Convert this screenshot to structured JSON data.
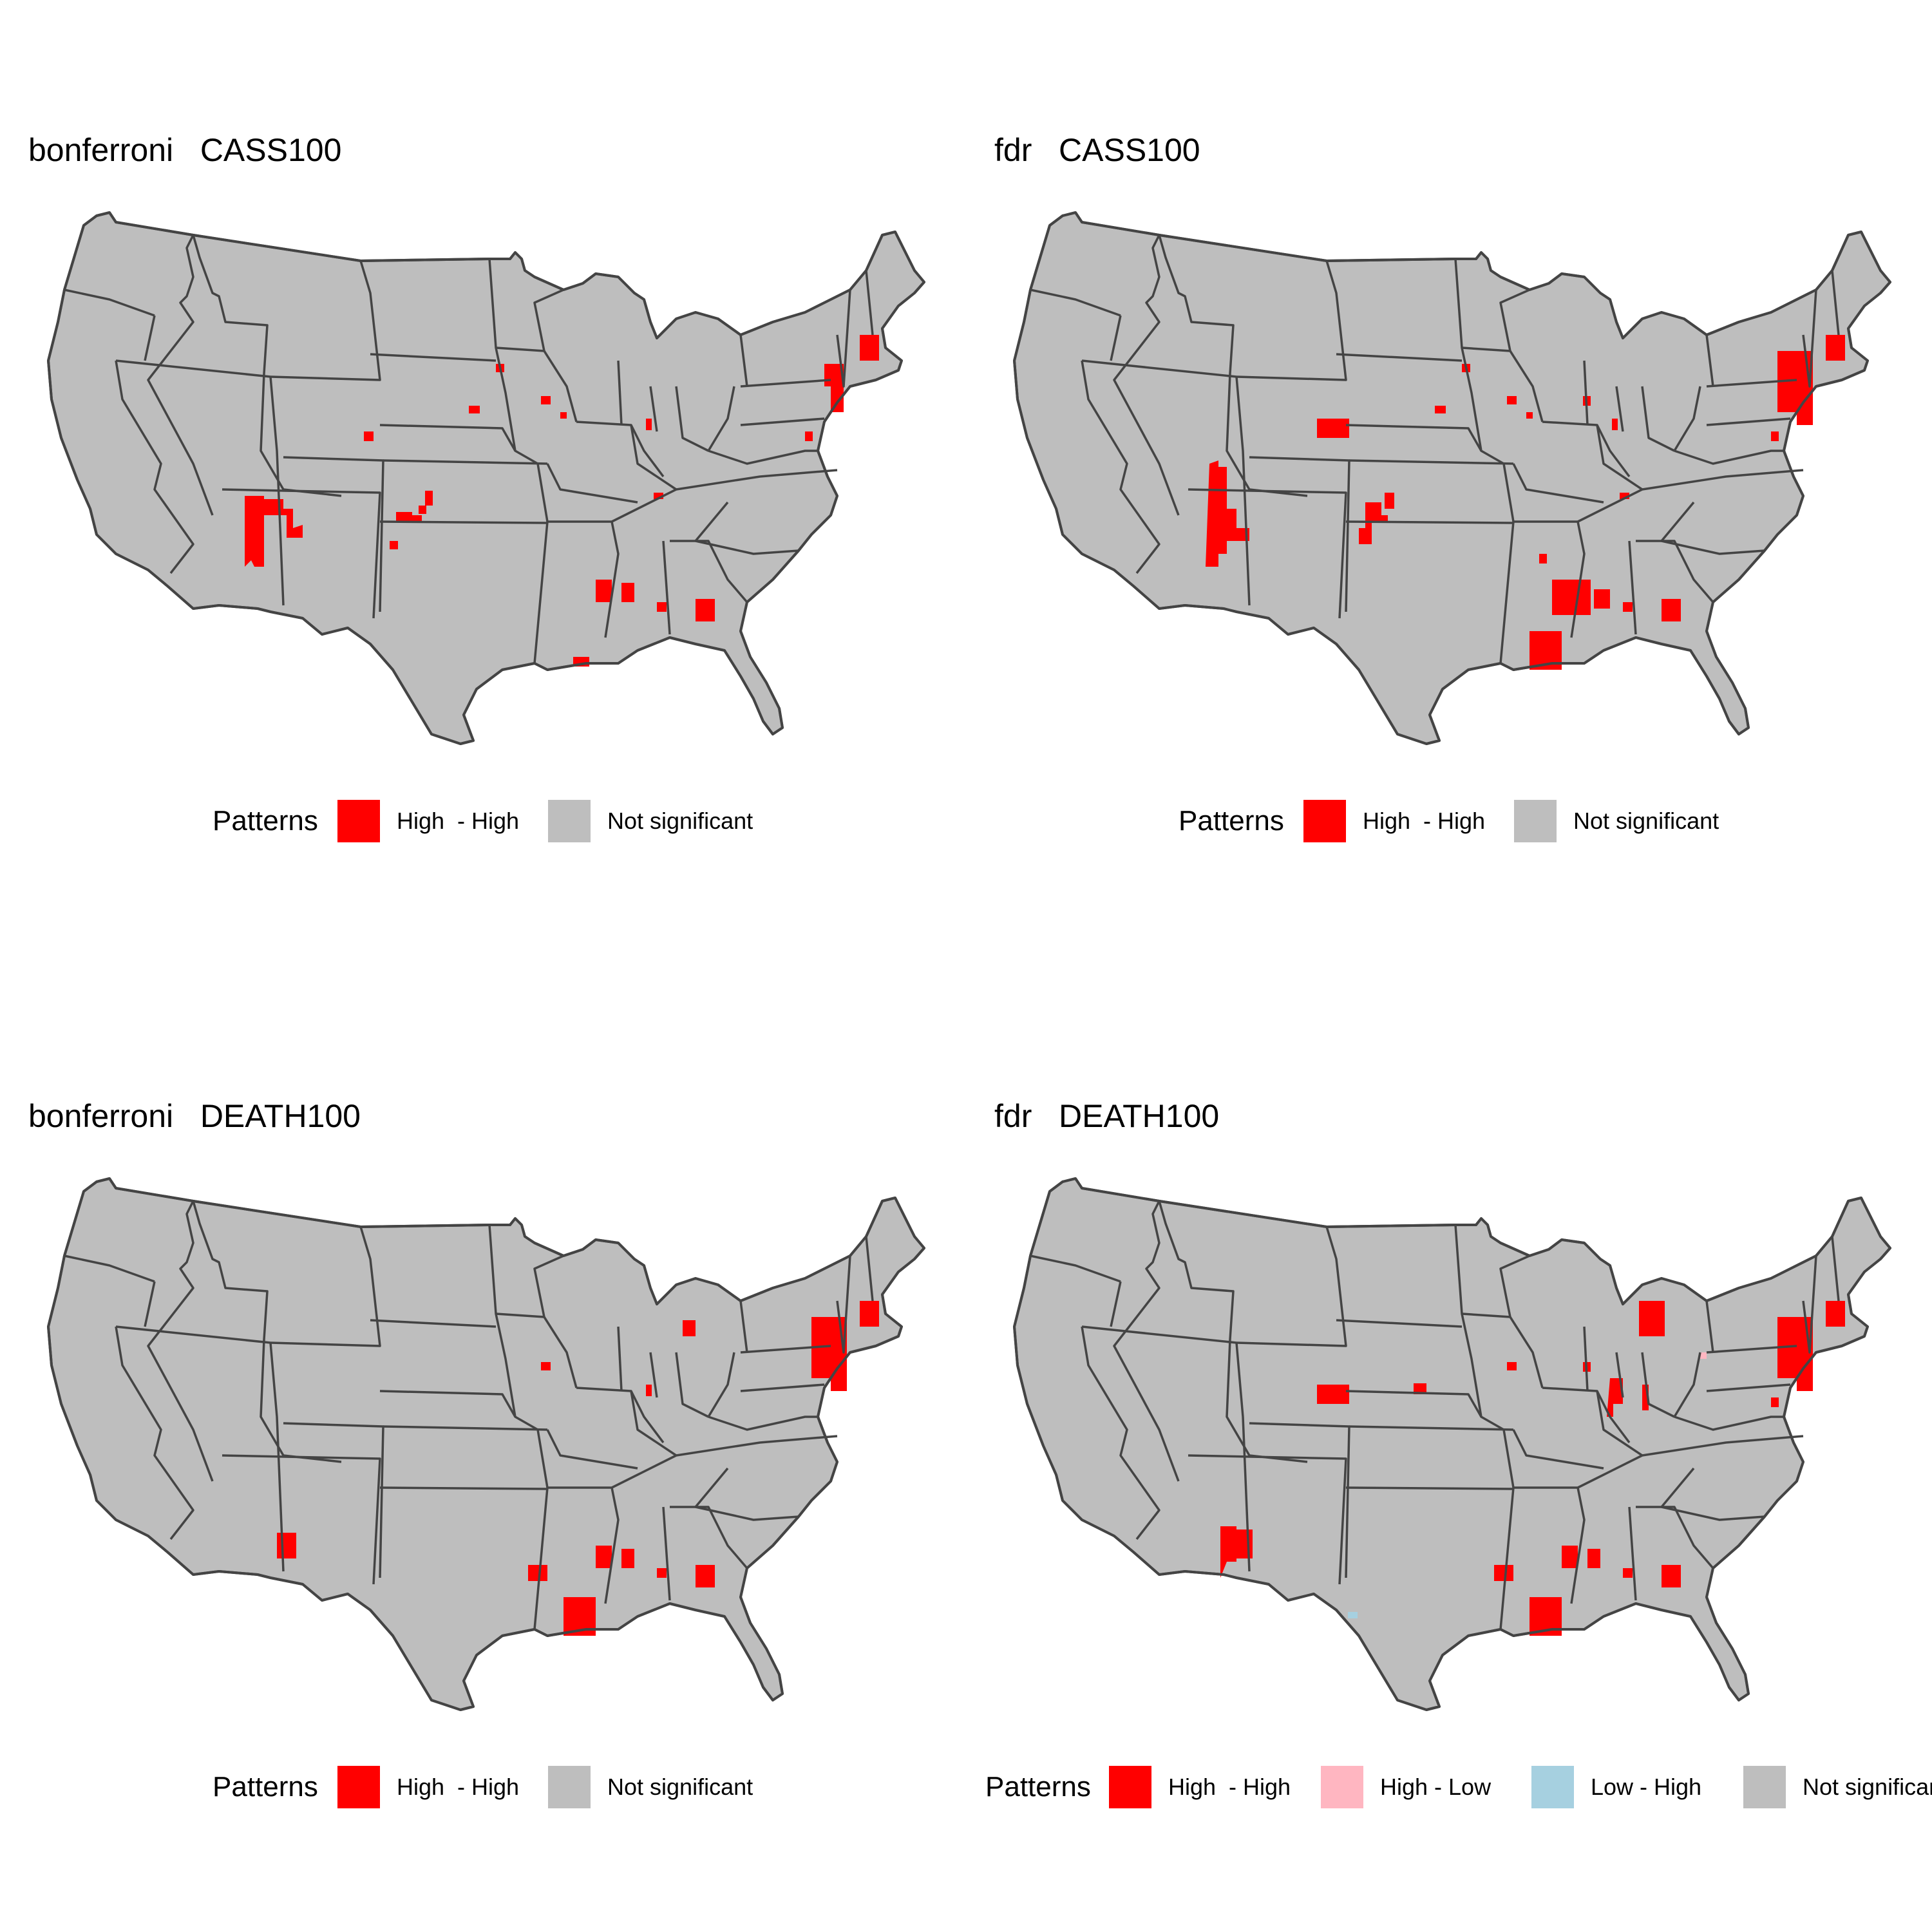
{
  "colors": {
    "high_high": "#ff0000",
    "high_low": "#ffb6c1",
    "low_high": "#a6d0e0",
    "not_significant": "#bebebe",
    "state_border": "#444444"
  },
  "panels": [
    {
      "title": "bonferroni   CASS100",
      "legend_title": "Patterns",
      "legend": [
        {
          "label": "High  - High",
          "color": "#ff0000"
        },
        {
          "label": "Not significant",
          "color": "#bebebe"
        }
      ],
      "clusters": [
        "az_ne_strip",
        "ut_co_pair",
        "ne_small",
        "ks_sw",
        "ks_se",
        "ok_pan",
        "ia_nw",
        "ia_c",
        "ne_e",
        "in_c",
        "ky_n",
        "ms_c",
        "al_c",
        "ga_c",
        "la_se",
        "ny_nyc",
        "ma_e",
        "md_e"
      ]
    },
    {
      "title": "fdr   CASS100",
      "legend_title": "Patterns",
      "legend": [
        {
          "label": "High  - High",
          "color": "#ff0000"
        },
        {
          "label": "Not significant",
          "color": "#bebebe"
        }
      ],
      "clusters": [
        "az_ne_strip_big",
        "co_ne",
        "ks_sw_big",
        "ok_pan",
        "ia_nw",
        "ia_c",
        "ne_e",
        "il_n",
        "in_c",
        "ky_n",
        "ms_c_big",
        "al_c",
        "ga_c",
        "la_se_big",
        "nj_ny_big",
        "ma_e",
        "md_e",
        "ar_se"
      ]
    },
    {
      "title": "bonferroni   DEATH100",
      "legend_title": "Patterns",
      "legend": [
        {
          "label": "High  - High",
          "color": "#ff0000"
        },
        {
          "label": "Not significant",
          "color": "#bebebe"
        }
      ],
      "clusters": [
        "nm_nw",
        "ia_c",
        "mi_se",
        "in_c",
        "la_nw",
        "ms_c",
        "al_c",
        "ga_c",
        "la_se_big",
        "nj_ny_big",
        "ma_e"
      ]
    },
    {
      "title": "fdr   DEATH100",
      "legend_title": "Patterns",
      "legend": [
        {
          "label": "High  - High",
          "color": "#ff0000"
        },
        {
          "label": "High - Low",
          "color": "#ffb6c1"
        },
        {
          "label": "Low - High",
          "color": "#a6d0e0"
        },
        {
          "label": "Not significant",
          "color": "#bebebe"
        }
      ],
      "clusters": [
        "nm_nw_big",
        "co_ne",
        "ks_c",
        "ia_c",
        "il_n",
        "mi_se_big",
        "in_c_big",
        "la_nw",
        "ms_c",
        "al_c",
        "ga_c",
        "la_se_big",
        "nj_ny_big",
        "ma_e",
        "md_e",
        "tx_pan_lowhigh",
        "pa_w_highlow"
      ]
    }
  ]
}
